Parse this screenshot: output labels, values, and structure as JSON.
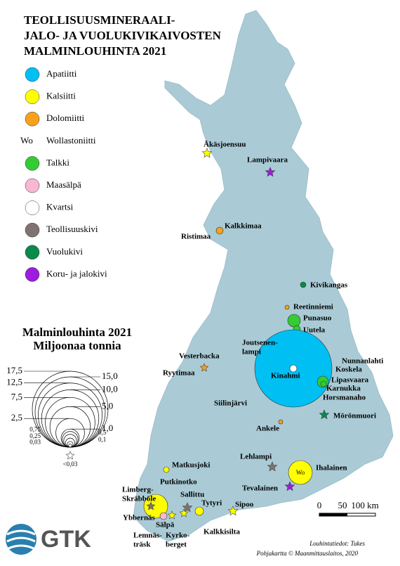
{
  "title": [
    "TEOLLISUUSMINERAALI-",
    "JALO- JA VUOLUKIVIKAIVOSTEN",
    "MALMINLOUHINTA  2021"
  ],
  "legend": [
    {
      "label": "Apatiitti",
      "color": "#00bff3"
    },
    {
      "label": "Kalsiitti",
      "color": "#ffff00"
    },
    {
      "label": "Dolomiitti",
      "color": "#f7a11a"
    },
    {
      "label": "Wollastoniitti",
      "symbol": "Wo"
    },
    {
      "label": "Talkki",
      "color": "#33cc33"
    },
    {
      "label": "Maasälpä",
      "color": "#f9b7d3"
    },
    {
      "label": "Kvartsi",
      "color": "#ffffff"
    },
    {
      "label": "Teollisuuskivi",
      "color": "#7f7370"
    },
    {
      "label": "Vuolukivi",
      "color": "#0a8a4a"
    },
    {
      "label": "Koru- ja jalokivi",
      "color": "#9b1de0"
    }
  ],
  "size_legend": {
    "title": "Malminlouhinta 2021",
    "subtitle": "Miljoonaa tonnia",
    "ticks": [
      {
        "value": 17.5,
        "label": "17,5"
      },
      {
        "value": 15,
        "label": "15,0"
      },
      {
        "value": 12.5,
        "label": "12,5"
      },
      {
        "value": 10,
        "label": "10,0"
      },
      {
        "value": 7.5,
        "label": "7,5"
      },
      {
        "value": 5,
        "label": "5,0"
      },
      {
        "value": 2.5,
        "label": "2,5"
      },
      {
        "value": 1,
        "label": "1,0"
      },
      {
        "value": 0.75,
        "label": "0,75"
      },
      {
        "value": 0.5,
        "label": "0,5"
      },
      {
        "value": 0.25,
        "label": "0,25"
      },
      {
        "value": 0.1,
        "label": "0,1"
      },
      {
        "value": 0.03,
        "label": "0,03"
      }
    ],
    "min_label": "<0,03"
  },
  "sites": [
    {
      "label": [
        "Äkäsjoensuu"
      ]
    },
    {
      "label": [
        "Lampivaara"
      ]
    },
    {
      "label": [
        "Kalkkimaa"
      ]
    },
    {
      "label": [
        "Ristimaa"
      ]
    },
    {
      "label": [
        "Kivikangas"
      ]
    },
    {
      "label": [
        "Reetinniemi"
      ]
    },
    {
      "label": [
        "Punasuo"
      ]
    },
    {
      "label": [
        "Uutela"
      ]
    },
    {
      "label": [
        "Joutsenen-",
        "lampi"
      ]
    },
    {
      "label": [
        "Nunnanlahti"
      ]
    },
    {
      "label": [
        "Koskela"
      ]
    },
    {
      "label": [
        "Kinahmi"
      ]
    },
    {
      "label": [
        "Lipasvaara"
      ]
    },
    {
      "label": [
        "Karnukka"
      ]
    },
    {
      "label": [
        "Horsmanaho"
      ]
    },
    {
      "label": [
        "Vesterbacka"
      ]
    },
    {
      "label": [
        "Ryytimaa"
      ]
    },
    {
      "label": [
        "Siilinjärvi"
      ]
    },
    {
      "label": [
        "Mörönmuori"
      ]
    },
    {
      "label": [
        "Ankele"
      ]
    },
    {
      "label": [
        "Lehlampi"
      ]
    },
    {
      "label": [
        "Ihalainen"
      ]
    },
    {
      "label": [
        "Tevalainen"
      ]
    },
    {
      "label": [
        "Matkusjoki"
      ]
    },
    {
      "label": [
        "Putkinotko"
      ]
    },
    {
      "label": [
        "Limberg-",
        "Skräbböle"
      ]
    },
    {
      "label": [
        "Sallittu"
      ]
    },
    {
      "label": [
        "Tytyri"
      ]
    },
    {
      "label": [
        "Sipoo"
      ]
    },
    {
      "label": [
        "Ybbernäs"
      ]
    },
    {
      "label": [
        "Sälpä"
      ]
    },
    {
      "label": [
        "Lemnäs-",
        "träsk"
      ]
    },
    {
      "label": [
        "Kyrko-",
        "berget"
      ]
    },
    {
      "label": [
        "Kalkkisilta"
      ]
    }
  ],
  "scale": [
    "0",
    "50",
    "100 km"
  ],
  "logo": "GTK",
  "credits": [
    "Louhintatiedot: Tukes",
    "Pohjakartta © Maanmittauslaitos, 2020"
  ]
}
